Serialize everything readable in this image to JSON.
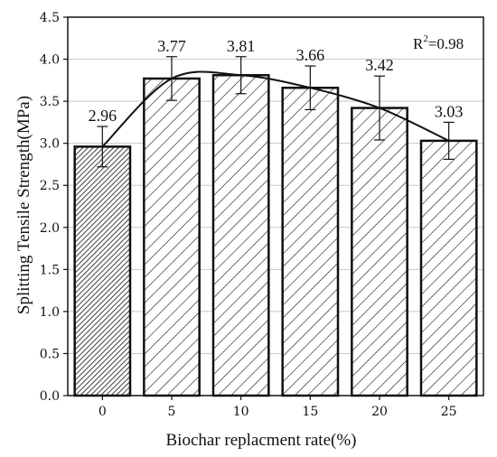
{
  "chart_data": {
    "type": "bar",
    "title": "",
    "xlabel": "Biochar replacment rate(%)",
    "ylabel": "Splitting Tensile Strength(MPa)",
    "categories": [
      "0",
      "5",
      "10",
      "15",
      "20",
      "25"
    ],
    "values": [
      2.96,
      3.77,
      3.81,
      3.66,
      3.42,
      3.03
    ],
    "value_labels": [
      "2.96",
      "3.77",
      "3.81",
      "3.66",
      "3.42",
      "3.03"
    ],
    "error": [
      0.24,
      0.26,
      0.22,
      0.26,
      0.38,
      0.22
    ],
    "ylim": [
      0,
      4.5
    ],
    "yticks": [
      "0.0",
      "0.5",
      "1.0",
      "1.5",
      "2.0",
      "2.5",
      "3.0",
      "3.5",
      "4.0",
      "4.5"
    ],
    "grid": true,
    "fit": {
      "type": "polynomial",
      "label_base": "R",
      "label_sup": "2",
      "label_rest": "=0.98"
    },
    "colors": {
      "bar_fill": "#ffffff",
      "hatch": "#111111",
      "first_bar_hatch": "dense",
      "other_bars_hatch": "sparse"
    }
  }
}
